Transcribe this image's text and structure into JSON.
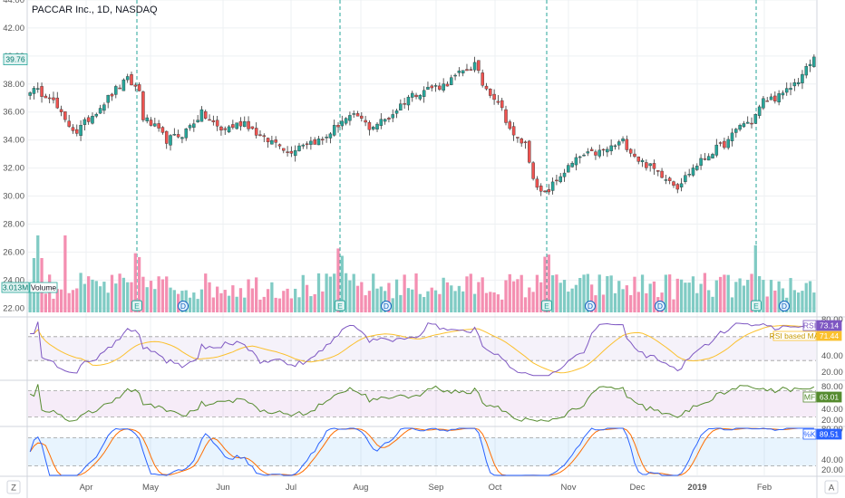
{
  "header": {
    "title": "PACCAR Inc., 1D, NASDAQ"
  },
  "colors": {
    "up": "#26a69a",
    "down": "#ef5350",
    "vol_up": "#80cbc4",
    "vol_down": "#f48fb1",
    "rsi": "#7e57c2",
    "rsi_ma": "#fbc02d",
    "mfi": "#558b2f",
    "stoch_k": "#2962ff",
    "stoch_d": "#ff6d00",
    "grid": "#eef0f3",
    "event_line": "#26a69a"
  },
  "price_axis": {
    "ticks": [
      "44.00",
      "42.00",
      "40.00",
      "38.00",
      "36.00",
      "34.00",
      "32.00",
      "30.00",
      "28.00",
      "26.00",
      "24.00",
      "22.00"
    ],
    "last_price": "39.76",
    "volume_value": "3.013M",
    "volume_label": "Volume"
  },
  "x_axis": {
    "labels": [
      "Apr",
      "May",
      "Jun",
      "Jul",
      "Aug",
      "Sep",
      "Oct",
      "Nov",
      "Dec",
      "2019",
      "Feb"
    ],
    "left_button": "Z",
    "right_button": "A"
  },
  "events": {
    "earnings": [
      "E",
      "E",
      "E",
      "E"
    ],
    "dividends": [
      "D",
      "D",
      "D",
      "D"
    ]
  },
  "indicators": {
    "rsi": {
      "tag": "RSI",
      "value": "73.14",
      "ma_tag": "RSI based MA",
      "ma_value": "71.44",
      "ticks": [
        "80.00",
        "40.00",
        "20.00"
      ]
    },
    "mfi": {
      "tag": "MF",
      "value": "63.01",
      "ticks": [
        "80.00",
        "40.00",
        "20.00"
      ]
    },
    "stoch": {
      "tag": "%K",
      "value": "89.51",
      "ticks": [
        "80.00",
        "40.00",
        "20.00"
      ]
    }
  },
  "chart_data": {
    "type": "candlestick",
    "title": "PACCAR Inc., 1D, NASDAQ",
    "x_labels": [
      "Apr",
      "May",
      "Jun",
      "Jul",
      "Aug",
      "Sep",
      "Oct",
      "Nov",
      "Dec",
      "2019",
      "Feb"
    ],
    "y_range": [
      21.5,
      44.0
    ],
    "close_anchors": [
      {
        "i": 0,
        "v": 37.6
      },
      {
        "i": 5,
        "v": 37.2
      },
      {
        "i": 9,
        "v": 35.3
      },
      {
        "i": 12,
        "v": 34.6
      },
      {
        "i": 16,
        "v": 35.8
      },
      {
        "i": 22,
        "v": 37.6
      },
      {
        "i": 25,
        "v": 38.3
      },
      {
        "i": 28,
        "v": 37.5
      },
      {
        "i": 29,
        "v": 35.6
      },
      {
        "i": 32,
        "v": 34.9
      },
      {
        "i": 35,
        "v": 34.0
      },
      {
        "i": 39,
        "v": 34.4
      },
      {
        "i": 44,
        "v": 35.9
      },
      {
        "i": 49,
        "v": 34.7
      },
      {
        "i": 55,
        "v": 35.3
      },
      {
        "i": 60,
        "v": 34.0
      },
      {
        "i": 64,
        "v": 33.8
      },
      {
        "i": 66,
        "v": 33.1
      },
      {
        "i": 70,
        "v": 33.8
      },
      {
        "i": 75,
        "v": 34.0
      },
      {
        "i": 80,
        "v": 35.4
      },
      {
        "i": 84,
        "v": 35.7
      },
      {
        "i": 87,
        "v": 34.9
      },
      {
        "i": 92,
        "v": 35.6
      },
      {
        "i": 97,
        "v": 37.1
      },
      {
        "i": 102,
        "v": 37.7
      },
      {
        "i": 106,
        "v": 37.9
      },
      {
        "i": 110,
        "v": 38.7
      },
      {
        "i": 114,
        "v": 39.4
      },
      {
        "i": 116,
        "v": 38.0
      },
      {
        "i": 120,
        "v": 36.8
      },
      {
        "i": 124,
        "v": 34.2
      },
      {
        "i": 127,
        "v": 33.7
      },
      {
        "i": 130,
        "v": 30.4
      },
      {
        "i": 132,
        "v": 30.1
      },
      {
        "i": 136,
        "v": 31.5
      },
      {
        "i": 141,
        "v": 32.8
      },
      {
        "i": 147,
        "v": 33.2
      },
      {
        "i": 152,
        "v": 33.9
      },
      {
        "i": 156,
        "v": 32.6
      },
      {
        "i": 160,
        "v": 31.9
      },
      {
        "i": 164,
        "v": 31.2
      },
      {
        "i": 166,
        "v": 30.7
      },
      {
        "i": 170,
        "v": 32.0
      },
      {
        "i": 175,
        "v": 33.2
      },
      {
        "i": 179,
        "v": 33.9
      },
      {
        "i": 182,
        "v": 35.1
      },
      {
        "i": 185,
        "v": 35.3
      },
      {
        "i": 188,
        "v": 36.8
      },
      {
        "i": 193,
        "v": 37.2
      },
      {
        "i": 197,
        "v": 38.3
      },
      {
        "i": 201,
        "v": 39.8
      }
    ],
    "volume_range": [
      0,
      6000000
    ],
    "current_volume": 3013000,
    "indicators": {
      "rsi": {
        "last": 73.14,
        "ma_last": 71.44,
        "levels": [
          70,
          30
        ]
      },
      "mfi": {
        "last": 63.01,
        "levels": [
          80,
          20
        ]
      },
      "stoch_k": {
        "last": 89.51,
        "levels": [
          80,
          20
        ]
      }
    }
  }
}
